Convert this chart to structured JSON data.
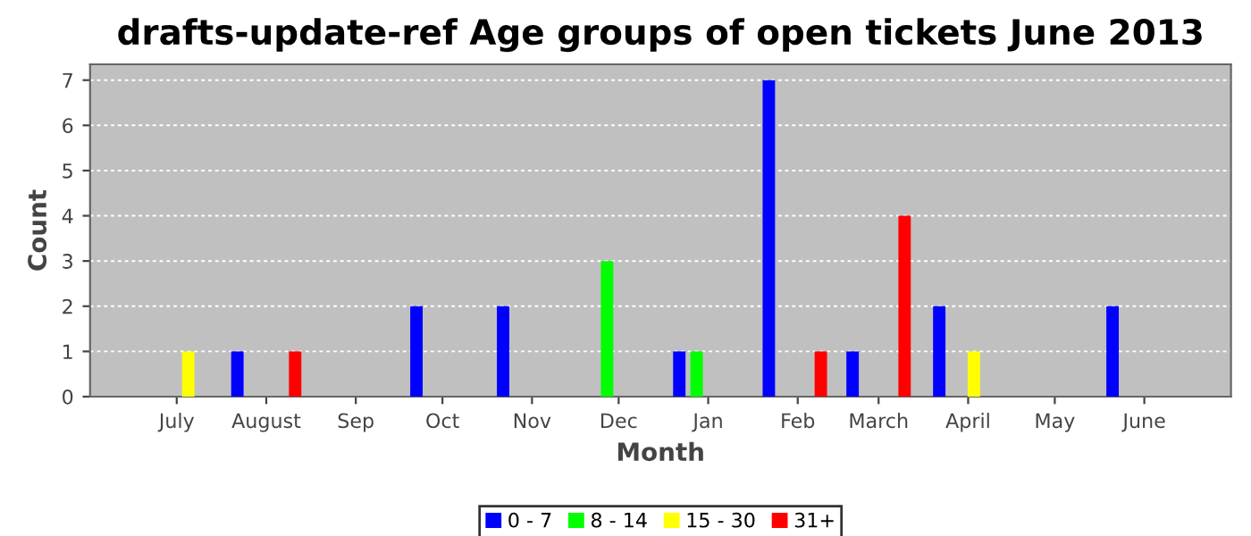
{
  "chart_data": {
    "type": "bar",
    "title": "drafts-update-ref Age groups of open tickets June 2013",
    "xlabel": "Month",
    "ylabel": "Count",
    "series": [
      {
        "name": "0 - 7",
        "color": "#0000ff",
        "x": [
          "2012-07-22",
          "2012-09-22",
          "2012-10-22",
          "2012-12-22",
          "2013-01-22",
          "2013-02-20",
          "2013-03-22",
          "2013-05-21"
        ],
        "values": [
          1,
          2,
          2,
          1,
          7,
          1,
          2,
          2
        ]
      },
      {
        "name": "8 - 14",
        "color": "#00ff00",
        "x": [
          "2012-11-27",
          "2012-12-28"
        ],
        "values": [
          3,
          1
        ]
      },
      {
        "name": "15 - 30",
        "color": "#ffff00",
        "x": [
          "2012-07-05",
          "2013-04-03"
        ],
        "values": [
          1,
          1
        ]
      },
      {
        "name": "31+",
        "color": "#ff0000",
        "x": [
          "2012-08-11",
          "2013-02-09",
          "2013-03-10"
        ],
        "values": [
          1,
          1,
          4
        ]
      }
    ],
    "xlim": [
      "2012-06-01",
      "2013-07-01"
    ],
    "xticks": [
      {
        "value": "2012-07-01",
        "label": "July"
      },
      {
        "value": "2012-08-01",
        "label": "August"
      },
      {
        "value": "2012-09-01",
        "label": "Sep"
      },
      {
        "value": "2012-10-01",
        "label": "Oct"
      },
      {
        "value": "2012-11-01",
        "label": "Nov"
      },
      {
        "value": "2012-12-01",
        "label": "Dec"
      },
      {
        "value": "2013-01-01",
        "label": "Jan"
      },
      {
        "value": "2013-02-01",
        "label": "Feb"
      },
      {
        "value": "2013-03-01",
        "label": "March"
      },
      {
        "value": "2013-04-01",
        "label": "April"
      },
      {
        "value": "2013-05-01",
        "label": "May"
      },
      {
        "value": "2013-06-01",
        "label": "June"
      }
    ],
    "ylim": [
      0,
      7.35
    ],
    "yticks": [
      0,
      1,
      2,
      3,
      4,
      5,
      6,
      7
    ],
    "grid": "y",
    "legend": "bottom"
  }
}
